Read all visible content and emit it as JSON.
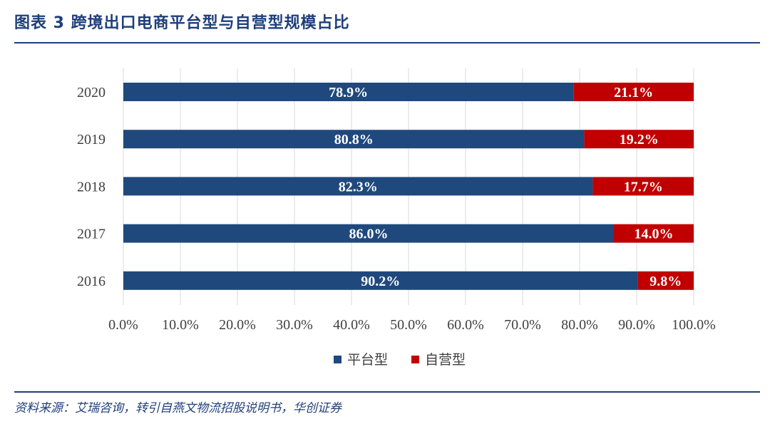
{
  "figure": {
    "title": "图表 3   跨境出口电商平台型与自营型规模占比",
    "source": "资料来源：艾瑞咨询，转引自燕文物流招股说明书，华创证券"
  },
  "colors": {
    "platform": "#1f497d",
    "self": "#c00000",
    "accent": "#1f3f7a",
    "grid": "#d9d9d9",
    "text": "#404040"
  },
  "chart_data": {
    "type": "bar",
    "orientation": "horizontal",
    "stacked": true,
    "categories": [
      "2020",
      "2019",
      "2018",
      "2017",
      "2016"
    ],
    "series": [
      {
        "name": "平台型",
        "values": [
          78.9,
          80.8,
          82.3,
          86.0,
          90.2
        ],
        "labels": [
          "78.9%",
          "80.8%",
          "82.3%",
          "86.0%",
          "90.2%"
        ]
      },
      {
        "name": "自营型",
        "values": [
          21.1,
          19.2,
          17.7,
          14.0,
          9.8
        ],
        "labels": [
          "21.1%",
          "19.2%",
          "17.7%",
          "14.0%",
          "9.8%"
        ]
      }
    ],
    "xlim": [
      0,
      100
    ],
    "xticks": [
      "0.0%",
      "10.0%",
      "20.0%",
      "30.0%",
      "40.0%",
      "50.0%",
      "60.0%",
      "70.0%",
      "80.0%",
      "90.0%",
      "100.0%"
    ],
    "grid": true,
    "legend_position": "bottom"
  }
}
